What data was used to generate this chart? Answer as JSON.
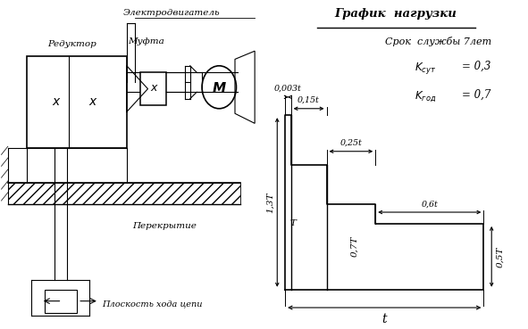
{
  "title": "График  нагрузки",
  "subtitle": "Срок  службы 7лет",
  "k_sut_text": "K",
  "k_sut_val": "= 0,3",
  "k_god_text": "K",
  "k_god_val": "= 0,7",
  "label_reduktor": "Редуктор",
  "label_elektrodvigatel": "Электродвигатель",
  "label_mufta": "Муфта",
  "label_perekrytie": "Перекрытие",
  "label_ploskost": "Плоскость хода цепи",
  "bg_color": "#ffffff",
  "line_color": "#000000",
  "step1_label": "0,003t",
  "step2_label": "0,15t",
  "step3_label": "0,25t",
  "step4_label": "0,6t",
  "load1_label": "1,3T",
  "load2_label": "T",
  "load3_label": "0,7T",
  "load4_label": "0,5T",
  "t_label": "t"
}
